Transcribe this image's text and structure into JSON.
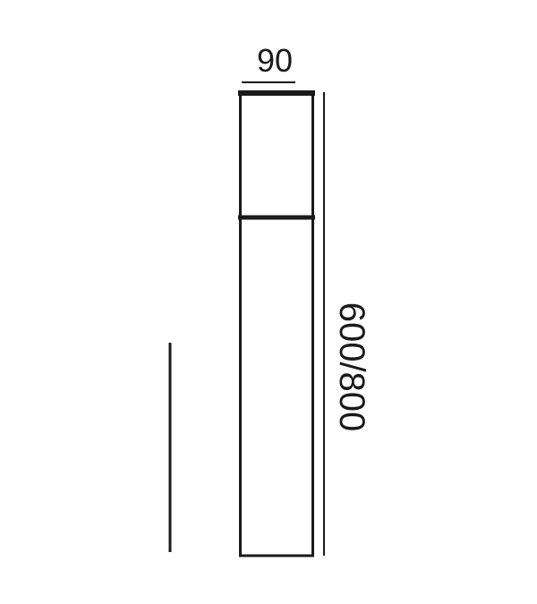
{
  "dimensions": {
    "width": "90",
    "height": "600/800"
  }
}
